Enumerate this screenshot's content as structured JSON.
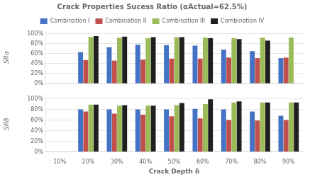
{
  "chart_data": [
    {
      "type": "bar",
      "title": "Crack Properties Sucess Ratio (αActual=62.5%)",
      "categories": [
        "10%",
        "20%",
        "30%",
        "40%",
        "50%",
        "60%",
        "70%",
        "80%",
        "90%"
      ],
      "ylabel": "SRα",
      "series": [
        {
          "name": "Combination I",
          "color": "#4472C4",
          "values": [
            0,
            63,
            73,
            78,
            77,
            76,
            68,
            65,
            51
          ]
        },
        {
          "name": "Combination II",
          "color": "#C0504D",
          "values": [
            0,
            47,
            46,
            48,
            50,
            50,
            52,
            51,
            52
          ]
        },
        {
          "name": "Combination III",
          "color": "#9BBB59",
          "values": [
            0,
            93,
            92,
            91,
            93,
            92,
            91,
            92,
            92
          ]
        },
        {
          "name": "Combination IV",
          "color": "#1F1F1F",
          "values": [
            0,
            95,
            94,
            93,
            93,
            91,
            89,
            86,
            0
          ]
        }
      ],
      "ylim": [
        0,
        105
      ],
      "yticks": [
        {
          "value": 0,
          "label": "0%"
        },
        {
          "value": 20,
          "label": "20%"
        },
        {
          "value": 40,
          "label": "40%"
        },
        {
          "value": 60,
          "label": "60%"
        },
        {
          "value": 80,
          "label": "80%"
        },
        {
          "value": 100,
          "label": "100%"
        }
      ],
      "grid": true,
      "legend": "top",
      "tick_labels": "y"
    },
    {
      "type": "bar",
      "categories": [
        "10%",
        "20%",
        "30%",
        "40%",
        "50%",
        "60%",
        "70%",
        "80%",
        "90%"
      ],
      "xlabel": "Crack Depth δ",
      "ylabel": "SRδ",
      "series": [
        {
          "name": "Combination I",
          "color": "#4472C4",
          "values": [
            0,
            80,
            80,
            80,
            80,
            81,
            80,
            76,
            68
          ]
        },
        {
          "name": "Combination II",
          "color": "#C0504D",
          "values": [
            0,
            76,
            72,
            70,
            67,
            63,
            60,
            59,
            60
          ]
        },
        {
          "name": "Combination III",
          "color": "#9BBB59",
          "values": [
            0,
            89,
            87,
            87,
            88,
            90,
            93,
            93,
            93
          ]
        },
        {
          "name": "Combination IV",
          "color": "#1F1F1F",
          "values": [
            0,
            89,
            88,
            87,
            92,
            99,
            95,
            93,
            93
          ]
        }
      ],
      "ylim": [
        0,
        105
      ],
      "yticks": [
        {
          "value": 0,
          "label": "0%"
        },
        {
          "value": 20,
          "label": "20%"
        },
        {
          "value": 40,
          "label": "40%"
        },
        {
          "value": 60,
          "label": "60%"
        },
        {
          "value": 80,
          "label": "80%"
        },
        {
          "value": 100,
          "label": "100%"
        }
      ],
      "grid": true
    }
  ]
}
